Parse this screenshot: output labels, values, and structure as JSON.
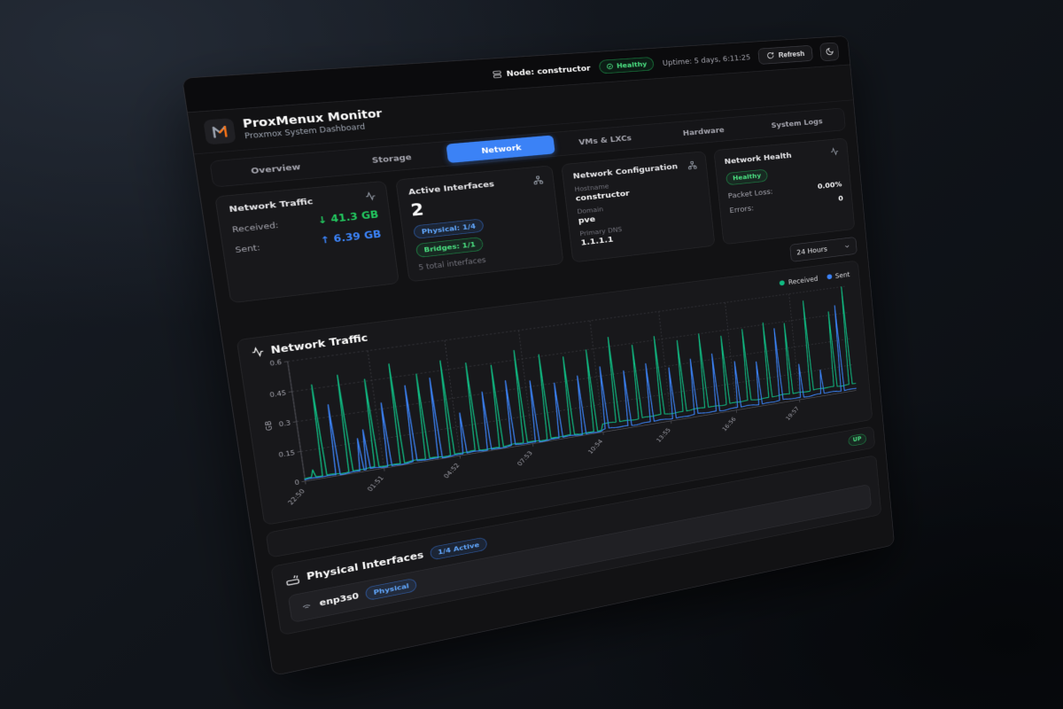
{
  "colors": {
    "accent_blue": "#3b82f6",
    "green": "#22c55e",
    "badge_green_text": "#4ade80",
    "badge_blue_text": "#60a5fa",
    "orange_logo": "#f97316",
    "card_bg": "#18181b",
    "panel_bg": "#121214"
  },
  "topbar": {
    "node_label": "Node: constructor",
    "health_badge": "Healthy",
    "uptime": "Uptime: 5 days, 6:11:25",
    "refresh_label": "Refresh"
  },
  "header": {
    "title": "ProxMenux Monitor",
    "subtitle": "Proxmox System Dashboard"
  },
  "tabs": [
    {
      "label": "Overview",
      "active": false
    },
    {
      "label": "Storage",
      "active": false
    },
    {
      "label": "Network",
      "active": true
    },
    {
      "label": "VMs & LXCs",
      "active": false
    },
    {
      "label": "Hardware",
      "active": false
    },
    {
      "label": "System Logs",
      "active": false
    }
  ],
  "cards": {
    "traffic": {
      "title": "Network Traffic",
      "received_label": "Received:",
      "received_arrow": "↓",
      "received_value": "41.3 GB",
      "sent_label": "Sent:",
      "sent_arrow": "↑",
      "sent_value": "6.39 GB"
    },
    "interfaces": {
      "title": "Active Interfaces",
      "count": "2",
      "physical_badge": "Physical: 1/4",
      "bridges_badge": "Bridges: 1/1",
      "total": "5 total interfaces"
    },
    "config": {
      "title": "Network Configuration",
      "hostname_label": "Hostname",
      "hostname": "constructor",
      "domain_label": "Domain",
      "domain": "pve",
      "dns_label": "Primary DNS",
      "dns": "1.1.1.1"
    },
    "health": {
      "title": "Network Health",
      "badge": "Healthy",
      "packet_loss_label": "Packet Loss:",
      "packet_loss": "0.00%",
      "errors_label": "Errors:",
      "errors": "0"
    }
  },
  "controls": {
    "time_range": "24 Hours"
  },
  "chart": {
    "title": "Network Traffic"
  },
  "status": {
    "up_badge": "UP"
  },
  "physical": {
    "title": "Physical Interfaces",
    "active_badge": "1/4 Active",
    "interfaces": [
      {
        "name": "enp3s0",
        "type_badge": "Physical"
      }
    ]
  },
  "chart_data": {
    "type": "line",
    "title": "Network Traffic",
    "ylabel": "GB",
    "ylim": [
      0,
      0.6
    ],
    "yticks": [
      0,
      0.15,
      0.3,
      0.45,
      0.6
    ],
    "duration_min": 1435,
    "sample_step_min": 5,
    "grid": "dotted",
    "legend_position": "top-right",
    "xticks": [
      {
        "pos": 0.0,
        "label": "22:50"
      },
      {
        "pos": 0.1261,
        "label": "01:51"
      },
      {
        "pos": 0.2523,
        "label": "04:52"
      },
      {
        "pos": 0.3784,
        "label": "07:53"
      },
      {
        "pos": 0.5045,
        "label": "10:54"
      },
      {
        "pos": 0.6307,
        "label": "13:55"
      },
      {
        "pos": 0.7568,
        "label": "16:56"
      },
      {
        "pos": 0.8829,
        "label": "19:57"
      }
    ],
    "series": [
      {
        "name": "Received",
        "color": "#10b981",
        "baseline": [
          {
            "until_min": 720,
            "gb": 0.012
          },
          {
            "until_min": 1435,
            "gb": 0.042
          }
        ],
        "spikes": [
          {
            "min": 20,
            "gb": 0.05
          },
          {
            "min": 45,
            "gb": 0.47
          },
          {
            "min": 105,
            "gb": 0.5
          },
          {
            "min": 165,
            "gb": 0.46
          },
          {
            "min": 225,
            "gb": 0.52
          },
          {
            "min": 285,
            "gb": 0.45
          },
          {
            "min": 345,
            "gb": 0.5
          },
          {
            "min": 405,
            "gb": 0.47
          },
          {
            "min": 465,
            "gb": 0.44
          },
          {
            "min": 525,
            "gb": 0.5
          },
          {
            "min": 585,
            "gb": 0.46
          },
          {
            "min": 645,
            "gb": 0.43
          },
          {
            "min": 705,
            "gb": 0.45
          },
          {
            "min": 765,
            "gb": 0.5
          },
          {
            "min": 825,
            "gb": 0.44
          },
          {
            "min": 885,
            "gb": 0.47
          },
          {
            "min": 945,
            "gb": 0.43
          },
          {
            "min": 1005,
            "gb": 0.45
          },
          {
            "min": 1065,
            "gb": 0.42
          },
          {
            "min": 1125,
            "gb": 0.44
          },
          {
            "min": 1185,
            "gb": 0.46
          },
          {
            "min": 1245,
            "gb": 0.44
          },
          {
            "min": 1305,
            "gb": 0.55
          },
          {
            "min": 1375,
            "gb": 0.47
          },
          {
            "min": 1420,
            "gb": 0.6
          }
        ]
      },
      {
        "name": "Sent",
        "color": "#3b82f6",
        "baseline": [
          {
            "until_min": 720,
            "gb": 0.007
          },
          {
            "until_min": 1435,
            "gb": 0.013
          }
        ],
        "spikes": [
          {
            "min": 75,
            "gb": 0.36
          },
          {
            "min": 130,
            "gb": 0.17
          },
          {
            "min": 145,
            "gb": 0.21
          },
          {
            "min": 195,
            "gb": 0.33
          },
          {
            "min": 255,
            "gb": 0.4
          },
          {
            "min": 315,
            "gb": 0.42
          },
          {
            "min": 375,
            "gb": 0.22
          },
          {
            "min": 435,
            "gb": 0.31
          },
          {
            "min": 495,
            "gb": 0.35
          },
          {
            "min": 555,
            "gb": 0.33
          },
          {
            "min": 615,
            "gb": 0.3
          },
          {
            "min": 675,
            "gb": 0.32
          },
          {
            "min": 735,
            "gb": 0.35
          },
          {
            "min": 795,
            "gb": 0.31
          },
          {
            "min": 855,
            "gb": 0.33
          },
          {
            "min": 915,
            "gb": 0.29
          },
          {
            "min": 975,
            "gb": 0.32
          },
          {
            "min": 1035,
            "gb": 0.33
          },
          {
            "min": 1095,
            "gb": 0.27
          },
          {
            "min": 1155,
            "gb": 0.25
          },
          {
            "min": 1215,
            "gb": 0.42
          },
          {
            "min": 1275,
            "gb": 0.2
          },
          {
            "min": 1335,
            "gb": 0.15
          },
          {
            "min": 1395,
            "gb": 0.5
          }
        ]
      }
    ]
  }
}
